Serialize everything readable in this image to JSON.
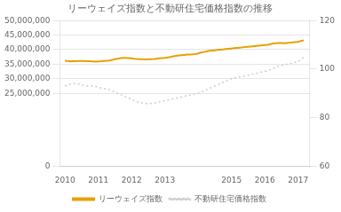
{
  "chart_data": {
    "type": "line",
    "title": "リーウェイズ指数と不動研住宅価格指数の推移",
    "x": [
      2010.0,
      2010.08,
      2010.17,
      2010.25,
      2010.33,
      2010.42,
      2010.5,
      2010.58,
      2010.67,
      2010.75,
      2010.83,
      2010.92,
      2011.0,
      2011.08,
      2011.17,
      2011.25,
      2011.33,
      2011.42,
      2011.5,
      2011.58,
      2011.67,
      2011.75,
      2011.83,
      2011.92,
      2012.0,
      2012.08,
      2012.17,
      2012.25,
      2012.33,
      2012.42,
      2012.5,
      2012.58,
      2012.67,
      2012.75,
      2012.83,
      2012.92,
      2013.0,
      2013.08,
      2013.17,
      2013.25,
      2013.33,
      2013.42,
      2013.5,
      2013.58,
      2013.67,
      2013.75,
      2013.83,
      2013.92,
      2014.0,
      2014.08,
      2014.17,
      2014.25,
      2014.33,
      2014.42,
      2014.5,
      2014.58,
      2014.67,
      2014.75,
      2014.83,
      2014.92,
      2015.0,
      2015.08,
      2015.17,
      2015.25,
      2015.33,
      2015.42,
      2015.5,
      2015.58,
      2015.67,
      2015.75,
      2015.83,
      2015.92,
      2016.0,
      2016.08,
      2016.17,
      2016.25,
      2016.33,
      2016.42,
      2016.5,
      2016.58,
      2016.67,
      2016.75,
      2016.83,
      2016.92,
      2017.0,
      2017.08,
      2017.17
    ],
    "series": [
      {
        "name": "リーウェイズ指数",
        "color": "#e8a000",
        "line_style": "solid",
        "values": [
          36200000,
          36100000,
          36000000,
          36100000,
          36050000,
          36100000,
          36150000,
          36100000,
          36050000,
          36000000,
          35950000,
          35900000,
          35950000,
          36000000,
          36100000,
          36200000,
          36300000,
          36500000,
          36700000,
          36900000,
          37100000,
          37200000,
          37150000,
          37100000,
          37050000,
          36900000,
          36800000,
          36750000,
          36700000,
          36650000,
          36700000,
          36750000,
          36800000,
          36900000,
          37000000,
          37100000,
          37200000,
          37350000,
          37500000,
          37700000,
          37900000,
          38000000,
          38100000,
          38200000,
          38300000,
          38350000,
          38400000,
          38500000,
          38700000,
          39000000,
          39200000,
          39400000,
          39600000,
          39700000,
          39800000,
          39900000,
          40000000,
          40100000,
          40200000,
          40300000,
          40400000,
          40500000,
          40600000,
          40700000,
          40800000,
          40900000,
          41000000,
          41100000,
          41200000,
          41300000,
          41400000,
          41500000,
          41600000,
          41700000,
          41900000,
          42100000,
          42200000,
          42300000,
          42300000,
          42200000,
          42300000,
          42400000,
          42500000,
          42600000,
          42700000,
          43000000,
          43200000
        ]
      },
      {
        "name": "不動研住宅価格指数",
        "color": "#cccccc",
        "line_style": "dotted",
        "axis": "y2",
        "values": [
          93.0,
          93.5,
          93.8,
          94.0,
          94.0,
          93.8,
          93.5,
          93.2,
          93.0,
          93.0,
          93.0,
          92.8,
          92.5,
          92.2,
          92.0,
          91.8,
          91.5,
          91.0,
          90.5,
          90.0,
          89.5,
          89.0,
          88.5,
          88.0,
          87.5,
          87.0,
          86.5,
          86.2,
          86.0,
          85.8,
          85.8,
          85.8,
          86.0,
          86.2,
          86.5,
          86.8,
          87.0,
          87.2,
          87.5,
          87.8,
          88.0,
          88.2,
          88.5,
          88.8,
          89.0,
          89.3,
          89.5,
          89.8,
          90.0,
          90.5,
          91.0,
          91.5,
          92.0,
          92.5,
          93.0,
          93.5,
          94.0,
          94.5,
          95.0,
          95.5,
          96.0,
          96.3,
          96.5,
          96.8,
          97.0,
          97.2,
          97.5,
          97.8,
          98.0,
          98.2,
          98.5,
          98.8,
          99.0,
          99.3,
          99.8,
          100.2,
          100.8,
          101.2,
          101.5,
          101.8,
          102.0,
          102.2,
          102.5,
          102.8,
          103.0,
          104.0,
          104.8
        ]
      }
    ],
    "xlim": [
      2009.85,
      2017.35
    ],
    "xticks": [
      2010,
      2011,
      2012,
      2013,
      2015,
      2016,
      2017
    ],
    "ylim": [
      0,
      50000000
    ],
    "yticks": [
      0,
      {
        "value": 25000000,
        "label": "25,000,000"
      },
      {
        "value": 30000000,
        "label": "30,000,000"
      },
      {
        "value": 35000000,
        "label": "35,000,000"
      },
      {
        "value": 40000000,
        "label": "40,000,000"
      },
      {
        "value": 45000000,
        "label": "45,000,000"
      },
      {
        "value": 50000000,
        "label": "50,000,000"
      }
    ],
    "y2lim": [
      60,
      120
    ],
    "y2ticks": [
      60,
      80,
      100,
      120
    ],
    "grid": true,
    "legend": "bottom"
  }
}
